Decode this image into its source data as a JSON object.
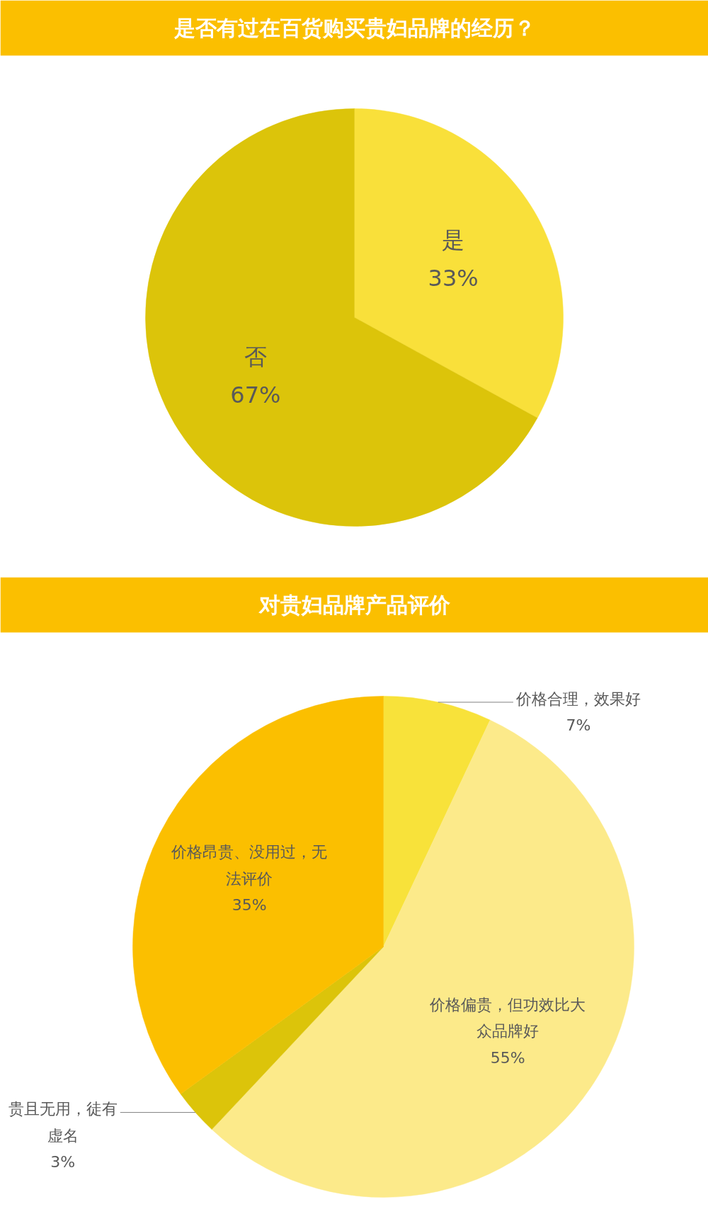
{
  "chart_data": [
    {
      "type": "pie",
      "title": "是否有过在百货购买贵妇品牌的经历？",
      "categories": [
        "是",
        "否"
      ],
      "values": [
        33,
        67
      ],
      "value_labels": [
        "33%",
        "67%"
      ],
      "colors": [
        "#f9e03a",
        "#dcc40a"
      ],
      "legend": false
    },
    {
      "type": "pie",
      "title": "对贵妇品牌产品评价",
      "categories": [
        "价格合理，效果好",
        "价格偏贵，但功效比大众品牌好",
        "贵且无用，徒有虚名",
        "价格昂贵、没用过，无法评价"
      ],
      "values": [
        7,
        55,
        3,
        35
      ],
      "value_labels": [
        "7%",
        "55%",
        "3%",
        "35%"
      ],
      "colors": [
        "#f8e23a",
        "#fcea8a",
        "#dcc40a",
        "#fbbf00"
      ],
      "legend": false
    }
  ]
}
